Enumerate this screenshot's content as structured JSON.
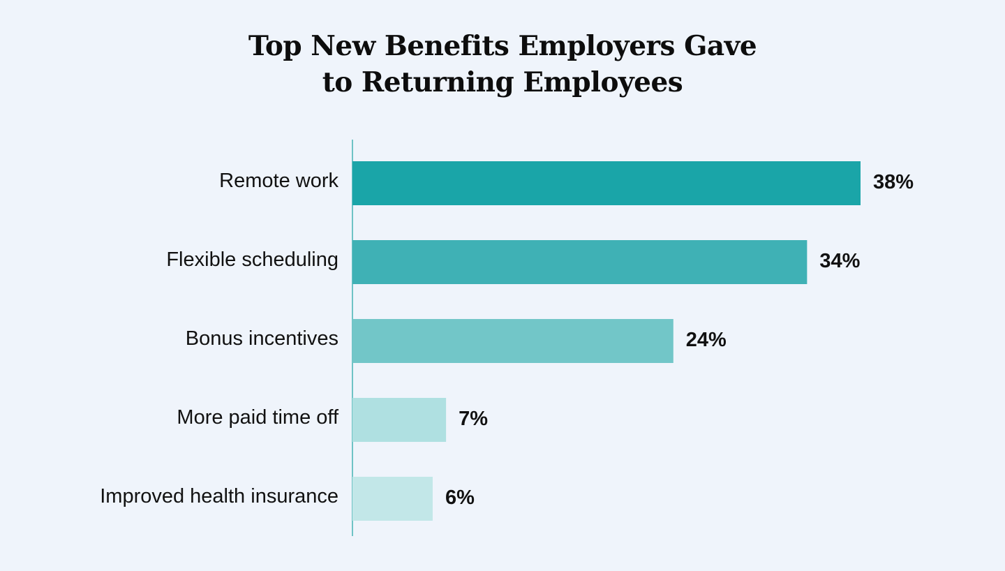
{
  "chart_data": {
    "type": "bar",
    "orientation": "horizontal",
    "title_lines": [
      "Top New Benefits Employers Gave",
      "to Returning Employees"
    ],
    "categories": [
      "Remote work",
      "Flexible scheduling",
      "Bonus incentives",
      "More paid time off",
      "Improved health insurance"
    ],
    "values": [
      38,
      34,
      24,
      7,
      6
    ],
    "value_labels": [
      "38%",
      "34%",
      "24%",
      "7%",
      "6%"
    ],
    "bar_colors": [
      "#1aa5a8",
      "#3fb1b5",
      "#72c6c8",
      "#afe0e1",
      "#c2e7e8"
    ],
    "axis_color": "#6fc3c5",
    "xlim": [
      0,
      38
    ],
    "grid": false,
    "legend": "none"
  }
}
